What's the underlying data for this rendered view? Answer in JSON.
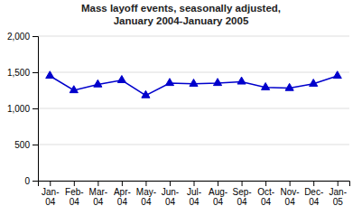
{
  "chart_data": {
    "type": "line",
    "title": "Mass layoff events, seasonally adjusted,\nJanuary 2004-January 2005",
    "categories": [
      "Jan-\n04",
      "Feb-\n04",
      "Mar-\n04",
      "Apr-\n04",
      "May-\n04",
      "Jun-\n04",
      "Jul-\n04",
      "Aug-\n04",
      "Sep-\n04",
      "Oct-\n04",
      "Nov-\n04",
      "Dec-\n04",
      "Jan-\n05"
    ],
    "values": [
      1450,
      1250,
      1330,
      1390,
      1180,
      1350,
      1340,
      1350,
      1370,
      1290,
      1280,
      1340,
      1450
    ],
    "color": "#0000CC",
    "marker": "triangle",
    "ylim": [
      0,
      2000
    ],
    "yticks": [
      0,
      500,
      {
        "value": 1000,
        "label": "1,000"
      },
      {
        "value": 1500,
        "label": "1,500"
      },
      {
        "value": 2000,
        "label": "2,000"
      }
    ],
    "grid": true
  }
}
